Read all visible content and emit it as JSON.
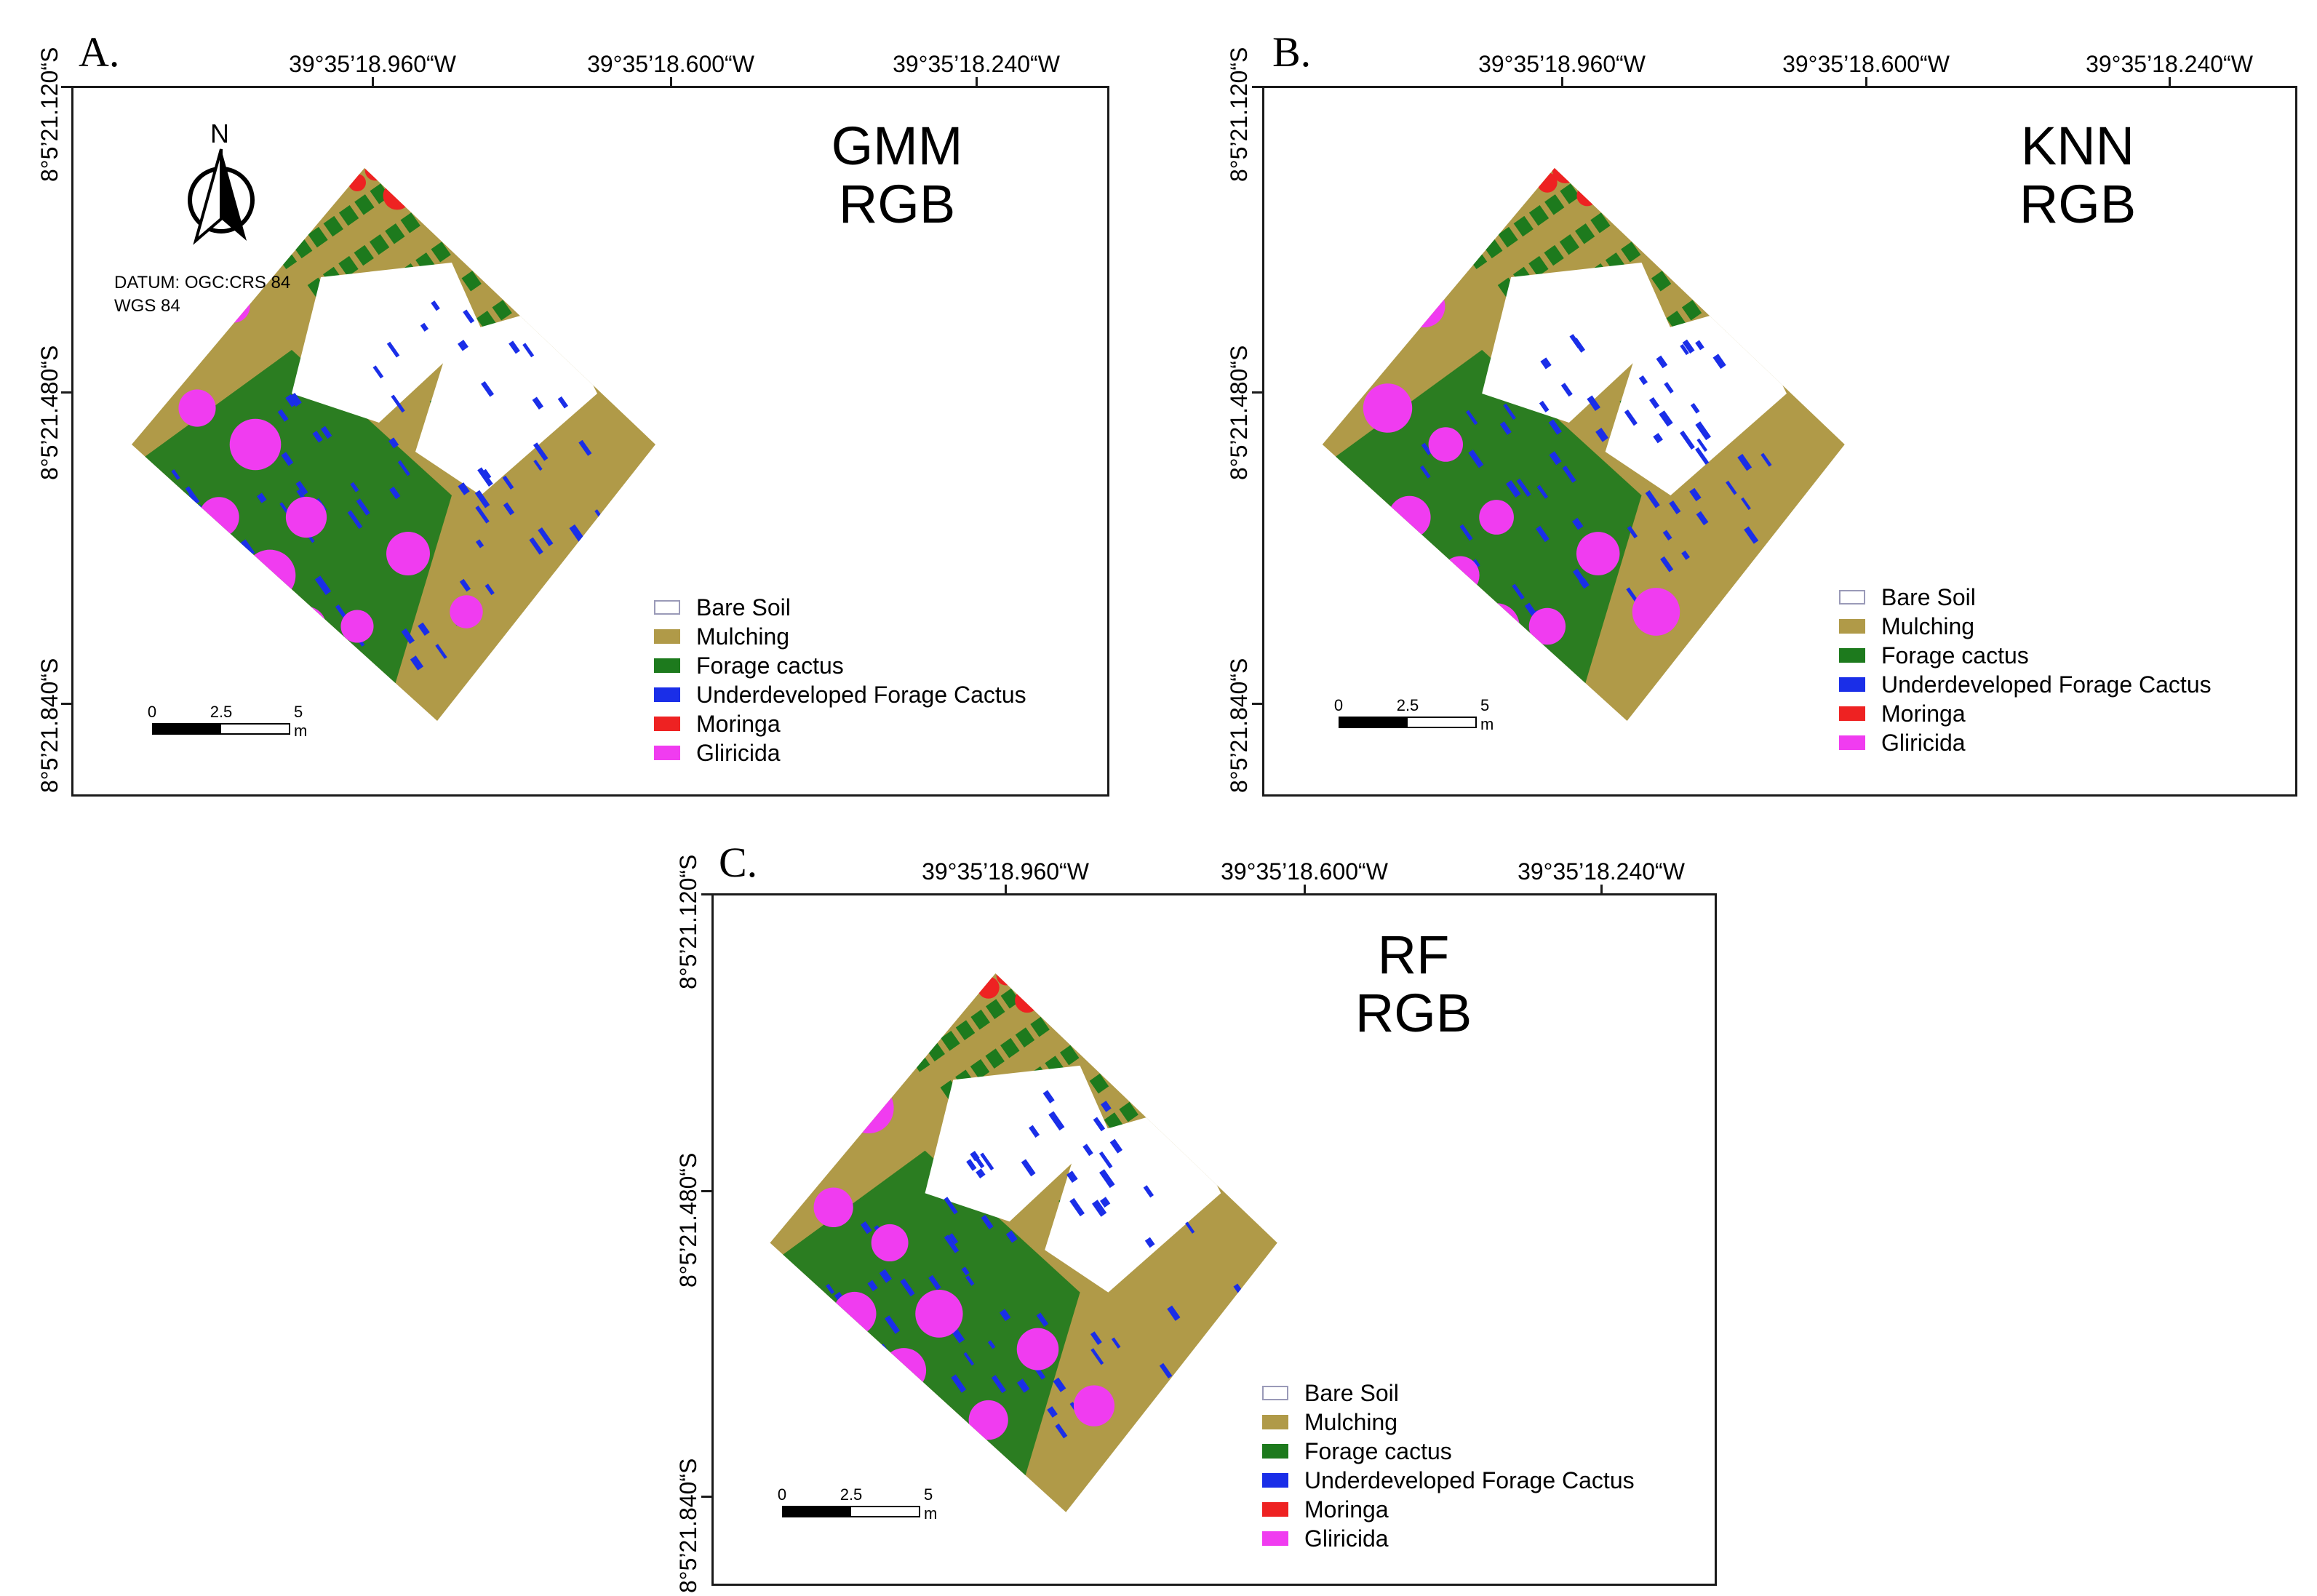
{
  "figure": {
    "coordinates": {
      "longitudes": [
        "39°35’18.960“W",
        "39°35’18.600“W",
        "39°35’18.240“W"
      ],
      "latitudes": [
        "8°5’21.120“S",
        "8°5’21.480“S",
        "8°5’21.840“S"
      ]
    },
    "legend": [
      {
        "label": "Bare Soil",
        "color": "#ffffff"
      },
      {
        "label": "Mulching",
        "color": "#b09a48"
      },
      {
        "label": "Forage cactus",
        "color": "#1d7a1d"
      },
      {
        "label": "Underdeveloped Forage Cactus",
        "color": "#1a2ee8"
      },
      {
        "label": "Moringa",
        "color": "#ee2222"
      },
      {
        "label": "Gliricida",
        "color": "#f03cf0"
      }
    ],
    "scale": {
      "labels": [
        "0",
        "2.5",
        "5 m"
      ]
    },
    "north": {
      "label": "N"
    },
    "datum": {
      "line1": "DATUM: OGC:CRS 84",
      "line2": "WGS 84"
    },
    "panels": [
      {
        "letter": "A.",
        "algorithm": "GMM",
        "band": "RGB"
      },
      {
        "letter": "B.",
        "algorithm": "KNN",
        "band": "RGB"
      },
      {
        "letter": "C.",
        "algorithm": "RF",
        "band": "RGB"
      }
    ]
  }
}
